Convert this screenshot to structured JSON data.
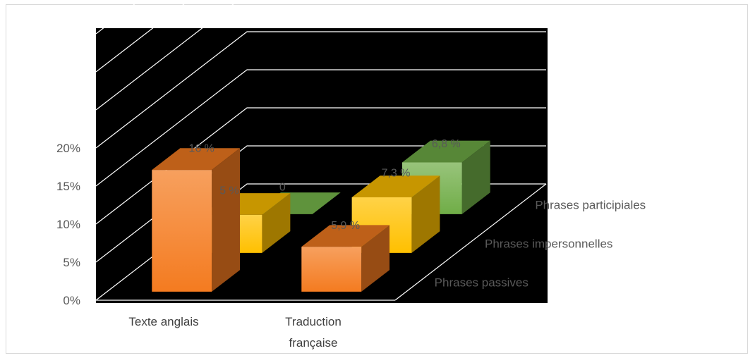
{
  "chart_data": {
    "type": "bar",
    "subtype": "3d-clustered-depth",
    "categories": [
      "Texte anglais",
      "Traduction française"
    ],
    "series": [
      {
        "name": "Phrases passives",
        "values": [
          16,
          5.9
        ],
        "labels": [
          "16 %",
          "5,9 %"
        ],
        "color": "#f47b20"
      },
      {
        "name": "Phrases impersonnelles",
        "values": [
          5,
          7.3
        ],
        "labels": [
          "5 %",
          "7,3 %"
        ],
        "color": "#ffc000"
      },
      {
        "name": "Phrases participiales",
        "values": [
          0,
          6.8
        ],
        "labels": [
          "0",
          "6,8 %"
        ],
        "color": "#70ad47"
      }
    ],
    "y_ticks": [
      "0%",
      "5%",
      "10%",
      "15%",
      "20%"
    ],
    "ylim": [
      0,
      35
    ],
    "grid": true,
    "plot_background": "#000000"
  }
}
